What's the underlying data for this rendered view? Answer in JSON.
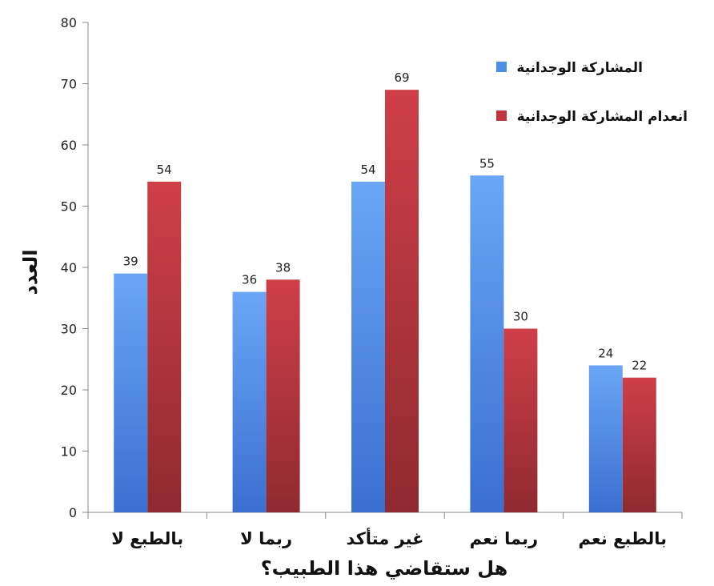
{
  "chart_data": {
    "type": "bar",
    "categories": [
      "بالطبع لا",
      "ربما لا",
      "غير متأكد",
      "ربما نعم",
      "بالطبع نعم"
    ],
    "series": [
      {
        "name": "المشاركة الوجدانية",
        "values": [
          39,
          36,
          54,
          55,
          24
        ],
        "color": "#4f8ee8"
      },
      {
        "name": "انعدام المشاركة الوجدانية",
        "values": [
          54,
          38,
          69,
          30,
          22
        ],
        "color": "#c0363f"
      }
    ],
    "xlabel": "هل ستقاضي هذا الطبيب؟",
    "ylabel": "العدد",
    "ylim": [
      0,
      80
    ],
    "yticks": [
      0,
      10,
      20,
      30,
      40,
      50,
      60,
      70,
      80
    ],
    "legend_position": "top-right",
    "grid": false
  }
}
